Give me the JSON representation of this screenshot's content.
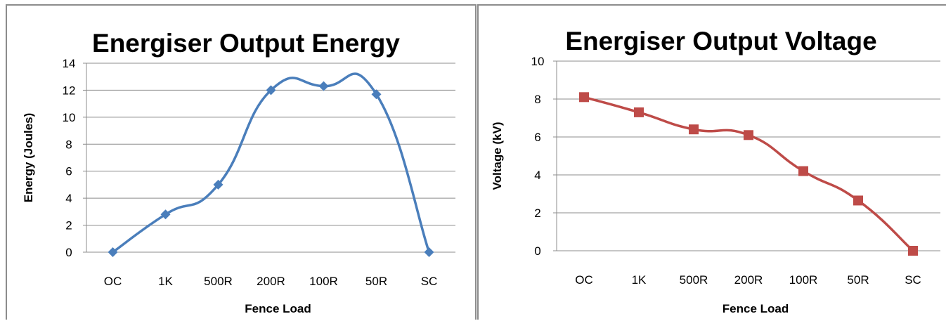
{
  "chart_data": [
    {
      "type": "line",
      "title": "Energiser Output Energy",
      "xlabel": "Fence Load",
      "ylabel": "Energy (Joules)",
      "categories": [
        "OC",
        "1K",
        "500R",
        "200R",
        "100R",
        "50R",
        "SC"
      ],
      "ylim": [
        0,
        14
      ],
      "yticks": [
        0,
        2,
        4,
        6,
        8,
        10,
        12,
        14
      ],
      "grid": true,
      "smooth": true,
      "marker": "diamond",
      "color": "#4a7ebb",
      "series": [
        {
          "values": [
            0,
            2.8,
            5.0,
            12.0,
            12.3,
            11.7,
            0
          ]
        }
      ]
    },
    {
      "type": "line",
      "title": "Energiser Output Voltage",
      "xlabel": "Fence Load",
      "ylabel": "Voltage (kV)",
      "categories": [
        "OC",
        "1K",
        "500R",
        "200R",
        "100R",
        "50R",
        "SC"
      ],
      "ylim": [
        0,
        10
      ],
      "yticks": [
        0,
        2,
        4,
        6,
        8,
        10
      ],
      "grid": true,
      "smooth": true,
      "marker": "square",
      "color": "#be4b48",
      "series": [
        {
          "values": [
            8.1,
            7.3,
            6.4,
            6.1,
            4.2,
            2.65,
            0
          ]
        }
      ]
    }
  ]
}
